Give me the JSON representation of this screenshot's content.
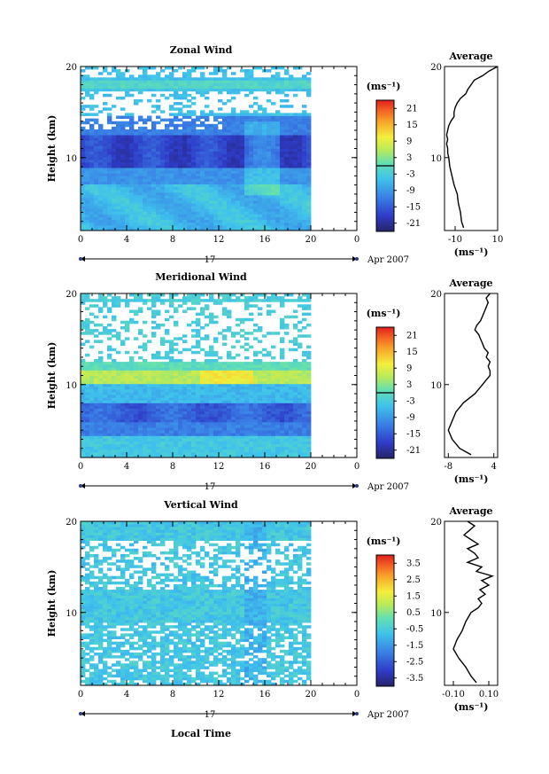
{
  "chart_data": [
    {
      "type": "heatmap",
      "title": "Zonal Wind",
      "ylabel": "Height (km)",
      "xlabel": "",
      "x_ticks": [
        "0",
        "4",
        "8",
        "12",
        "16",
        "20",
        "0"
      ],
      "y_ticks": [
        "20",
        "10"
      ],
      "xlim": [
        0,
        24
      ],
      "ylim": [
        2,
        20
      ],
      "date_label": "17",
      "month_label": "Apr 2007",
      "colorbar": {
        "unit_label": "(ms⁻¹)",
        "ticks": [
          "21",
          "15",
          "9",
          "3",
          "-3",
          "-9",
          "-15",
          "-21"
        ],
        "range": [
          -24,
          24
        ]
      },
      "average_profile": {
        "title": "Average",
        "xlabel": "(ms⁻¹)",
        "x_ticks": [
          "-10",
          "10"
        ],
        "xlim": [
          -15,
          10
        ],
        "y_ticks": [
          "20",
          "10"
        ],
        "heights": [
          2.3,
          3,
          4,
          5,
          6,
          7,
          8,
          9,
          10,
          10.5,
          11,
          11.5,
          12,
          12.5,
          13,
          13.5,
          14,
          14.5,
          15,
          15.5,
          16,
          16.5,
          17,
          17.5,
          18,
          18.5,
          19,
          19.5,
          20
        ],
        "values": [
          -6,
          -7,
          -7.5,
          -8.5,
          -9,
          -10.5,
          -11.5,
          -12.5,
          -13,
          -13.5,
          -13.5,
          -14,
          -13.5,
          -14,
          -13.5,
          -13,
          -12,
          -10.5,
          -10.5,
          -10,
          -9,
          -7.5,
          -5,
          -4,
          -2.5,
          -1,
          3,
          6,
          10
        ]
      }
    },
    {
      "type": "heatmap",
      "title": "Meridional Wind",
      "ylabel": "Height (km)",
      "xlabel": "",
      "x_ticks": [
        "0",
        "4",
        "8",
        "12",
        "16",
        "20",
        "0"
      ],
      "y_ticks": [
        "20",
        "10"
      ],
      "xlim": [
        0,
        24
      ],
      "ylim": [
        2,
        20
      ],
      "date_label": "17",
      "month_label": "Apr 2007",
      "colorbar": {
        "unit_label": "(ms⁻¹)",
        "ticks": [
          "21",
          "15",
          "9",
          "3",
          "-3",
          "-9",
          "-15",
          "-21"
        ],
        "range": [
          -24,
          24
        ]
      },
      "average_profile": {
        "title": "Average",
        "xlabel": "(ms⁻¹)",
        "x_ticks": [
          "-8",
          "4"
        ],
        "xlim": [
          -9,
          5
        ],
        "y_ticks": [
          "20",
          "10"
        ],
        "heights": [
          2.3,
          3,
          4,
          5,
          6,
          7,
          8,
          9,
          10,
          10.5,
          11,
          11.5,
          12,
          12.5,
          13,
          13.5,
          14,
          14.5,
          15,
          15.5,
          16,
          16.5,
          17,
          17.5,
          18,
          18.5,
          19,
          19.5,
          20
        ],
        "values": [
          -2,
          -5,
          -7,
          -8,
          -7,
          -6,
          -4,
          -1,
          1,
          2,
          3,
          3,
          2.5,
          3,
          2,
          2.5,
          1.5,
          1,
          0.5,
          0,
          -1,
          -0.5,
          0.5,
          1,
          1.5,
          2,
          2.5,
          2,
          3
        ]
      }
    },
    {
      "type": "heatmap",
      "title": "Vertical Wind",
      "ylabel": "Height (km)",
      "xlabel": "Local Time",
      "x_ticks": [
        "0",
        "4",
        "8",
        "12",
        "16",
        "20",
        "0"
      ],
      "y_ticks": [
        "20",
        "10"
      ],
      "xlim": [
        0,
        24
      ],
      "ylim": [
        2,
        20
      ],
      "date_label": "17",
      "month_label": "Apr 2007",
      "colorbar": {
        "unit_label": "(ms⁻¹)",
        "ticks": [
          "3.5",
          "2.5",
          "1.5",
          "0.5",
          "-0.5",
          "-1.5",
          "-2.5",
          "-3.5"
        ],
        "range": [
          -4,
          4
        ]
      },
      "average_profile": {
        "title": "Average",
        "xlabel": "(ms⁻¹)",
        "x_ticks": [
          "-0.10",
          "0.10"
        ],
        "xlim": [
          -0.15,
          0.15
        ],
        "y_ticks": [
          "20",
          "10"
        ],
        "heights": [
          2.3,
          3,
          4,
          5,
          6,
          7,
          8,
          9,
          10,
          10.5,
          11,
          11.5,
          12,
          12.5,
          13,
          13.5,
          14,
          14.5,
          15,
          15.5,
          16,
          16.5,
          17,
          17.5,
          18,
          18.5,
          19,
          19.5,
          20
        ],
        "values": [
          0.03,
          0.0,
          -0.03,
          -0.07,
          -0.1,
          -0.08,
          -0.05,
          -0.03,
          0.0,
          0.04,
          0.06,
          0.04,
          0.08,
          0.05,
          0.1,
          0.06,
          0.12,
          0.03,
          0.06,
          -0.02,
          0.04,
          0.02,
          -0.02,
          0.04,
          0.0,
          -0.04,
          -0.01,
          0.02,
          -0.02
        ]
      }
    }
  ]
}
